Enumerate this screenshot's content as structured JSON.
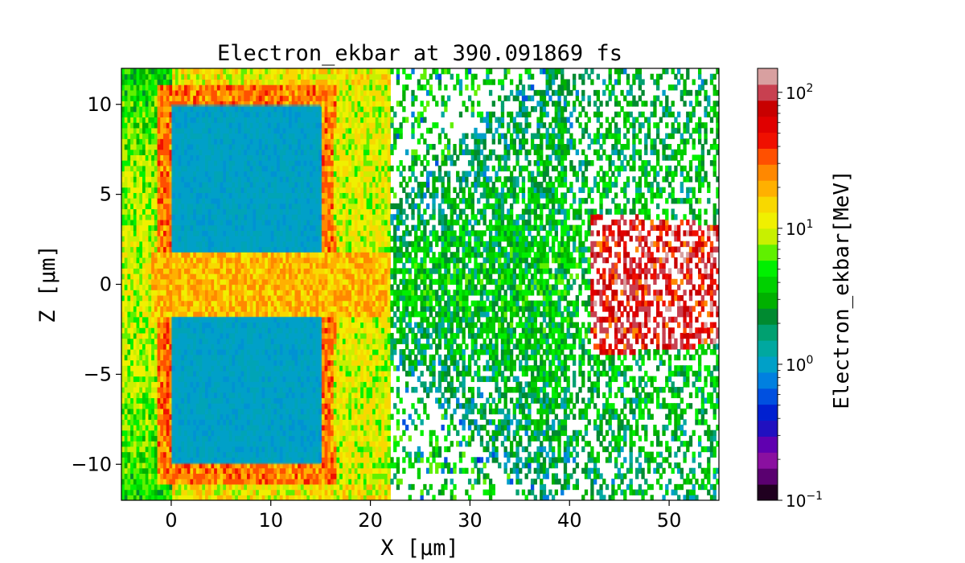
{
  "chart_data": {
    "type": "heatmap",
    "title": "Electron_ekbar at 390.091869 fs",
    "xlabel": "X [μm]",
    "ylabel": "Z [μm]",
    "xlim": [
      -5,
      55
    ],
    "ylim": [
      -12,
      12
    ],
    "x_ticks": [
      0,
      10,
      20,
      30,
      40,
      50
    ],
    "x_tick_labels": [
      "0",
      "10",
      "20",
      "30",
      "40",
      "50"
    ],
    "y_ticks": [
      -10,
      -5,
      0,
      5,
      10
    ],
    "y_tick_labels": [
      "−10",
      "−5",
      "0",
      "5",
      "10"
    ],
    "colorbar": {
      "label": "Electron_ekbar[MeV]",
      "scale": "log",
      "range": [
        0.1,
        150
      ],
      "ticks": [
        0.1,
        1,
        10,
        100
      ],
      "tick_bases": [
        "10",
        "10",
        "10",
        "10"
      ],
      "tick_exponents": [
        "−1",
        "0",
        "1",
        "2"
      ]
    },
    "regions": [
      {
        "name": "upper-block",
        "x": [
          0,
          15
        ],
        "z": [
          1.8,
          10
        ],
        "value_mev": 1
      },
      {
        "name": "lower-block",
        "x": [
          0,
          15
        ],
        "z": [
          -10,
          -1.8
        ],
        "value_mev": 1
      },
      {
        "name": "block-rim",
        "value_mev": 30
      },
      {
        "name": "central-channel",
        "x": [
          0,
          25
        ],
        "z": [
          -1.8,
          1.8
        ],
        "value_mev": 20
      },
      {
        "name": "expanding-cone",
        "x": [
          20,
          45
        ],
        "value_mev": 5
      },
      {
        "name": "forward-hot-spots",
        "x": [
          42,
          55
        ],
        "z": [
          -4,
          4
        ],
        "value_mev": 80
      }
    ],
    "grid": false,
    "legend": "none"
  }
}
